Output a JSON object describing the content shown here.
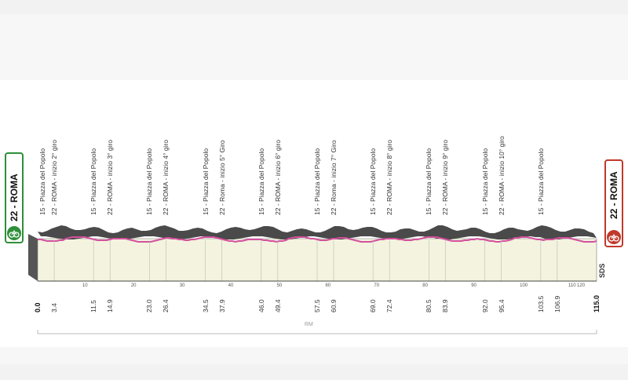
{
  "start": {
    "label": "22 - ROMA"
  },
  "finish": {
    "label": "22 - ROMA"
  },
  "sds_label": "SDS",
  "rm_label": "RM",
  "colors": {
    "profile_fill": "#f3f3df",
    "ridge": "#555555",
    "pink_line": "#d4509d",
    "start": "#2e8f3a",
    "finish": "#c0392b"
  },
  "km_labels": [
    "0.0",
    "3.4",
    "11.5",
    "14.9",
    "23.0",
    "26.4",
    "34.5",
    "37.9",
    "46.0",
    "49.4",
    "57.5",
    "60.9",
    "69.0",
    "72.4",
    "80.5",
    "83.9",
    "92.0",
    "95.4",
    "103.5",
    "106.9",
    "115.0"
  ],
  "waypoints": [
    "15 - Piazza del Popolo",
    "22 - ROMA - inizio 2° giro",
    "15 - Piazza del Popolo",
    "22 - ROMA - inizio 3° giro",
    "15 - Piazza del Popolo",
    "22 - ROMA - inizio 4° giro",
    "15 - Piazza del Popolo",
    "22 - Roma - inizio 5° Giro",
    "15 - Piazza del Popolo",
    "22 - ROMA - inizio 6° giro",
    "15 - Piazza del Popolo",
    "22 - Roma - inizio 7° Giro",
    "15 - Piazza del Popolo",
    "22 - ROMA - inizio 8° giro",
    "15 - Piazza del Popolo",
    "22 - ROMA - inizio 9° giro",
    "15 - Piazza del Popolo",
    "22 - ROMA - inizio 10° giro",
    "15 - Piazza del Popolo"
  ],
  "axis_ticks": [
    "10",
    "20",
    "30",
    "40",
    "50",
    "60",
    "70",
    "80",
    "90",
    "100",
    "110",
    "120"
  ]
}
